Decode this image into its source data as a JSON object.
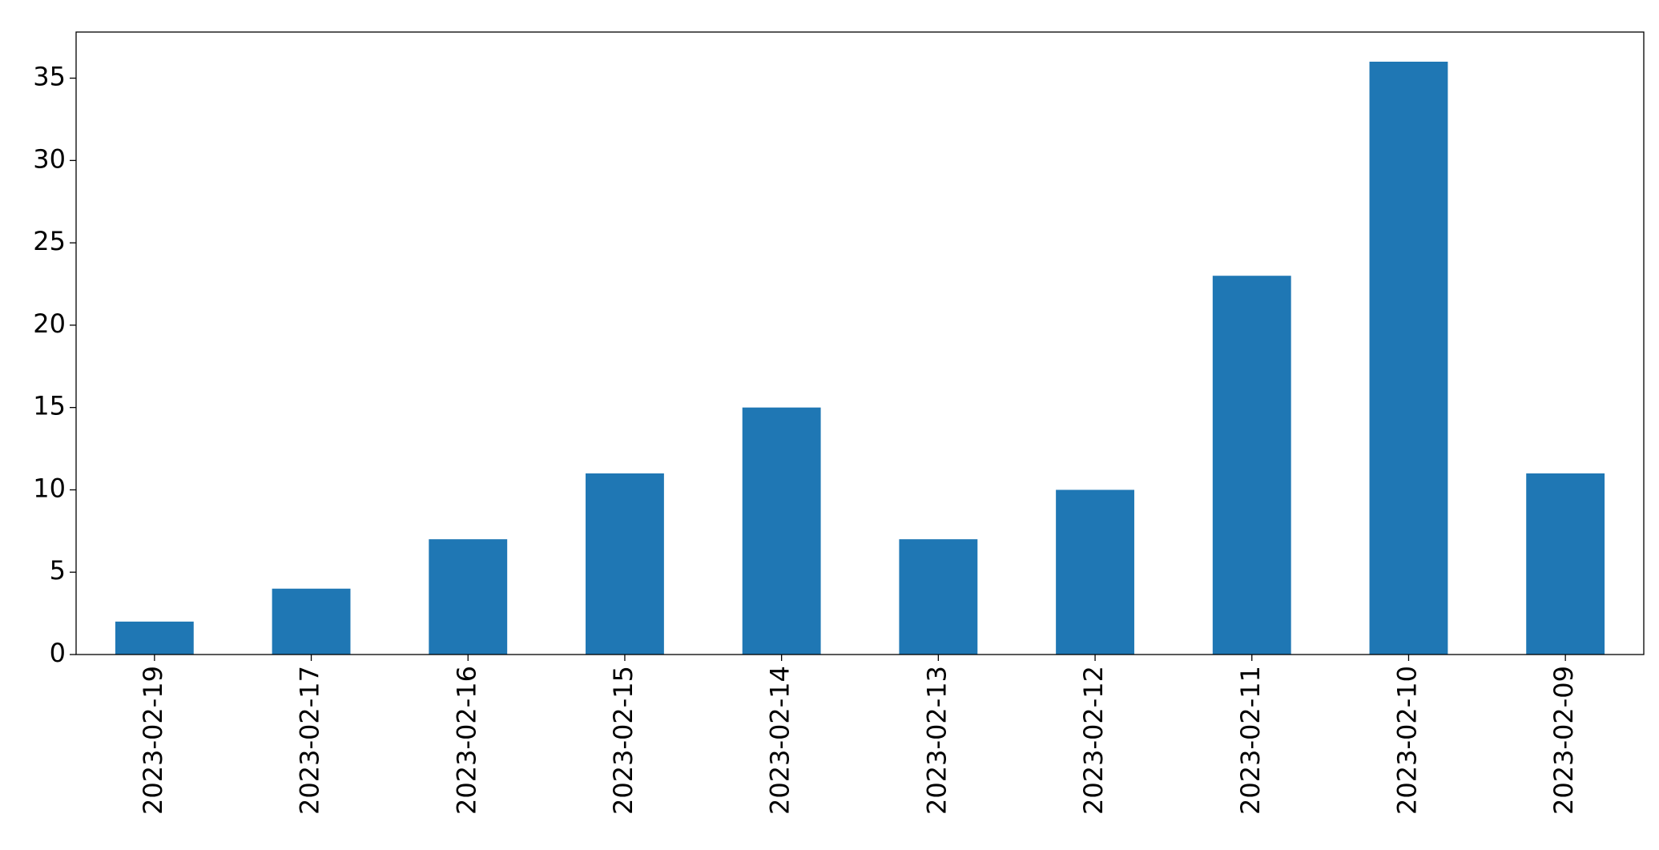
{
  "chart_data": {
    "type": "bar",
    "categories": [
      "2023-02-19",
      "2023-02-17",
      "2023-02-16",
      "2023-02-15",
      "2023-02-14",
      "2023-02-13",
      "2023-02-12",
      "2023-02-11",
      "2023-02-10",
      "2023-02-09"
    ],
    "values": [
      2,
      4,
      7,
      11,
      15,
      7,
      10,
      23,
      36,
      11
    ],
    "color": "#1f77b4",
    "ylim": [
      0,
      37.8
    ],
    "yticks": [
      0,
      5,
      10,
      15,
      20,
      25,
      30,
      35
    ],
    "grid": false
  }
}
